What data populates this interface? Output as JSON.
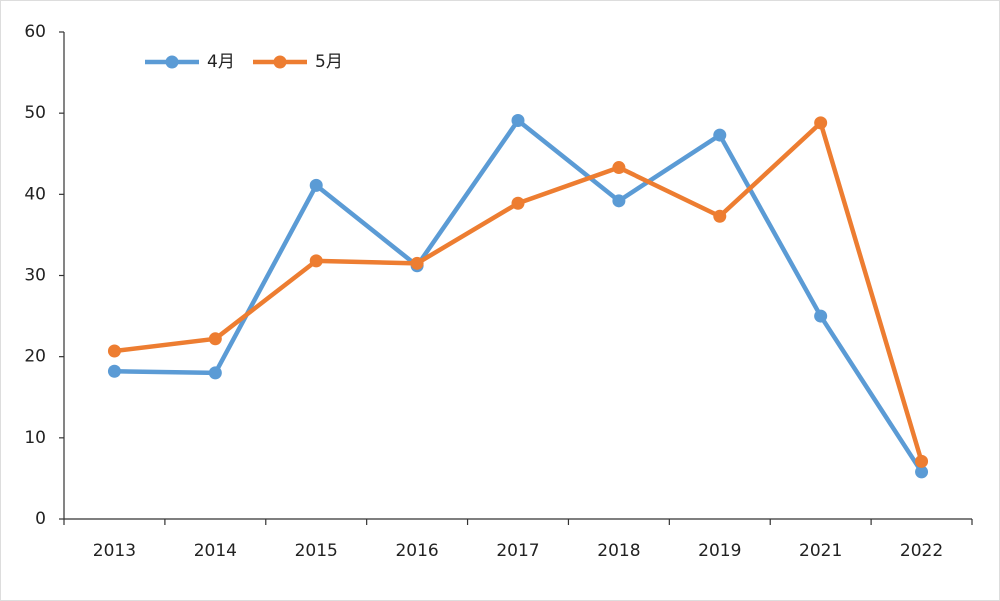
{
  "chart_data": {
    "type": "line",
    "categories": [
      "2013",
      "2014",
      "2015",
      "2016",
      "2017",
      "2018",
      "2019",
      "2021",
      "2022"
    ],
    "series": [
      {
        "name": "4月",
        "color": "#5b9bd5",
        "values": [
          18.2,
          18.0,
          41.1,
          31.2,
          49.1,
          39.2,
          47.3,
          25.0,
          5.8
        ]
      },
      {
        "name": "5月",
        "color": "#ed7d31",
        "values": [
          20.7,
          22.2,
          31.8,
          31.5,
          38.9,
          43.3,
          37.3,
          48.8,
          7.1
        ]
      }
    ],
    "ylim": [
      0,
      60
    ],
    "yticks": [
      0,
      10,
      20,
      30,
      40,
      50,
      60
    ],
    "grid": false,
    "legend": "top-left"
  }
}
